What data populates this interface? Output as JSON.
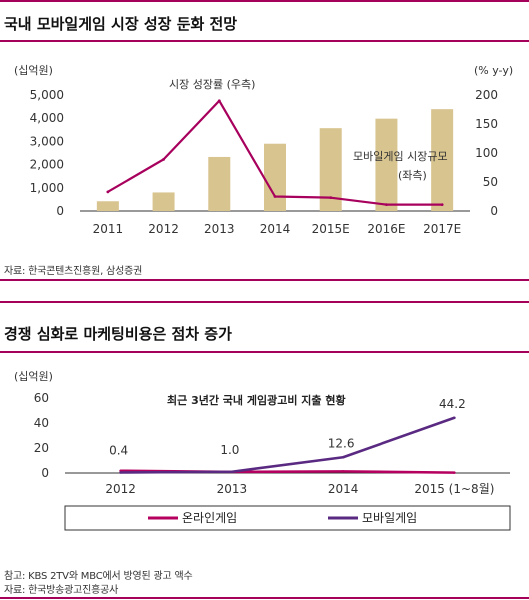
{
  "colors": {
    "accent": "#a5005a",
    "bar": "#d8c48f",
    "growth_line": "#a7005d",
    "online": "#b5005f",
    "mobile": "#5a2a82"
  },
  "chart1": {
    "title": "국내 모바일게임 시장 성장 둔화 전망",
    "source": "자료: 한국콘텐츠진흥원, 삼성증권",
    "left_unit": "(십억원)",
    "right_unit": "(% y-y)",
    "annotation_line": "시장 성장률 (우측)",
    "annotation_bar_1": "모바일게임 시장규모",
    "annotation_bar_2": "(좌측)"
  },
  "chart2": {
    "title": "경쟁 심화로 마케팅비용은 점차 증가",
    "unit": "(십억원)",
    "inner_title": "최근 3년간 국내 게임광고비 지출 현황",
    "note": "참고: KBS 2TV와 MBC에서 방영된 광고 액수",
    "source": "자료: 한국방송광고진흥공사"
  },
  "chart_data": [
    {
      "type": "bar",
      "title": "국내 모바일게임 시장 성장 둔화 전망",
      "categories": [
        "2011",
        "2012",
        "2013",
        "2014",
        "2015E",
        "2016E",
        "2017E"
      ],
      "series": [
        {
          "name": "모바일게임 시장규모 (좌측)",
          "type": "bar",
          "axis": "left",
          "values": [
            420,
            800,
            2330,
            2900,
            3570,
            3980,
            4390
          ]
        },
        {
          "name": "시장 성장률 (우측)",
          "type": "line",
          "axis": "right",
          "values": [
            33,
            89,
            190,
            25,
            23,
            11,
            11
          ]
        }
      ],
      "ylabel": "(십억원)",
      "y2label": "(% y-y)",
      "ylim": [
        0,
        5000
      ],
      "y2lim": [
        0,
        200
      ],
      "yticks": [
        "0",
        "1,000",
        "2,000",
        "3,000",
        "4,000",
        "5,000"
      ],
      "y2ticks": [
        "0",
        "50",
        "100",
        "150",
        "200"
      ]
    },
    {
      "type": "line",
      "title": "최근 3년간 국내 게임광고비 지출 현황",
      "categories": [
        "2012",
        "2013",
        "2014",
        "2015 (1~8월)"
      ],
      "series": [
        {
          "name": "온라인게임",
          "values": [
            1.8,
            0.9,
            1.3,
            0.3
          ]
        },
        {
          "name": "모바일게임",
          "values": [
            0.4,
            1.0,
            12.6,
            44.2
          ]
        }
      ],
      "data_labels": [
        "0.4",
        "1.0",
        "12.6",
        "44.2"
      ],
      "ylabel": "(십억원)",
      "ylim": [
        0,
        60
      ],
      "yticks": [
        "0",
        "20",
        "40",
        "60"
      ],
      "legend": "bottom"
    }
  ]
}
